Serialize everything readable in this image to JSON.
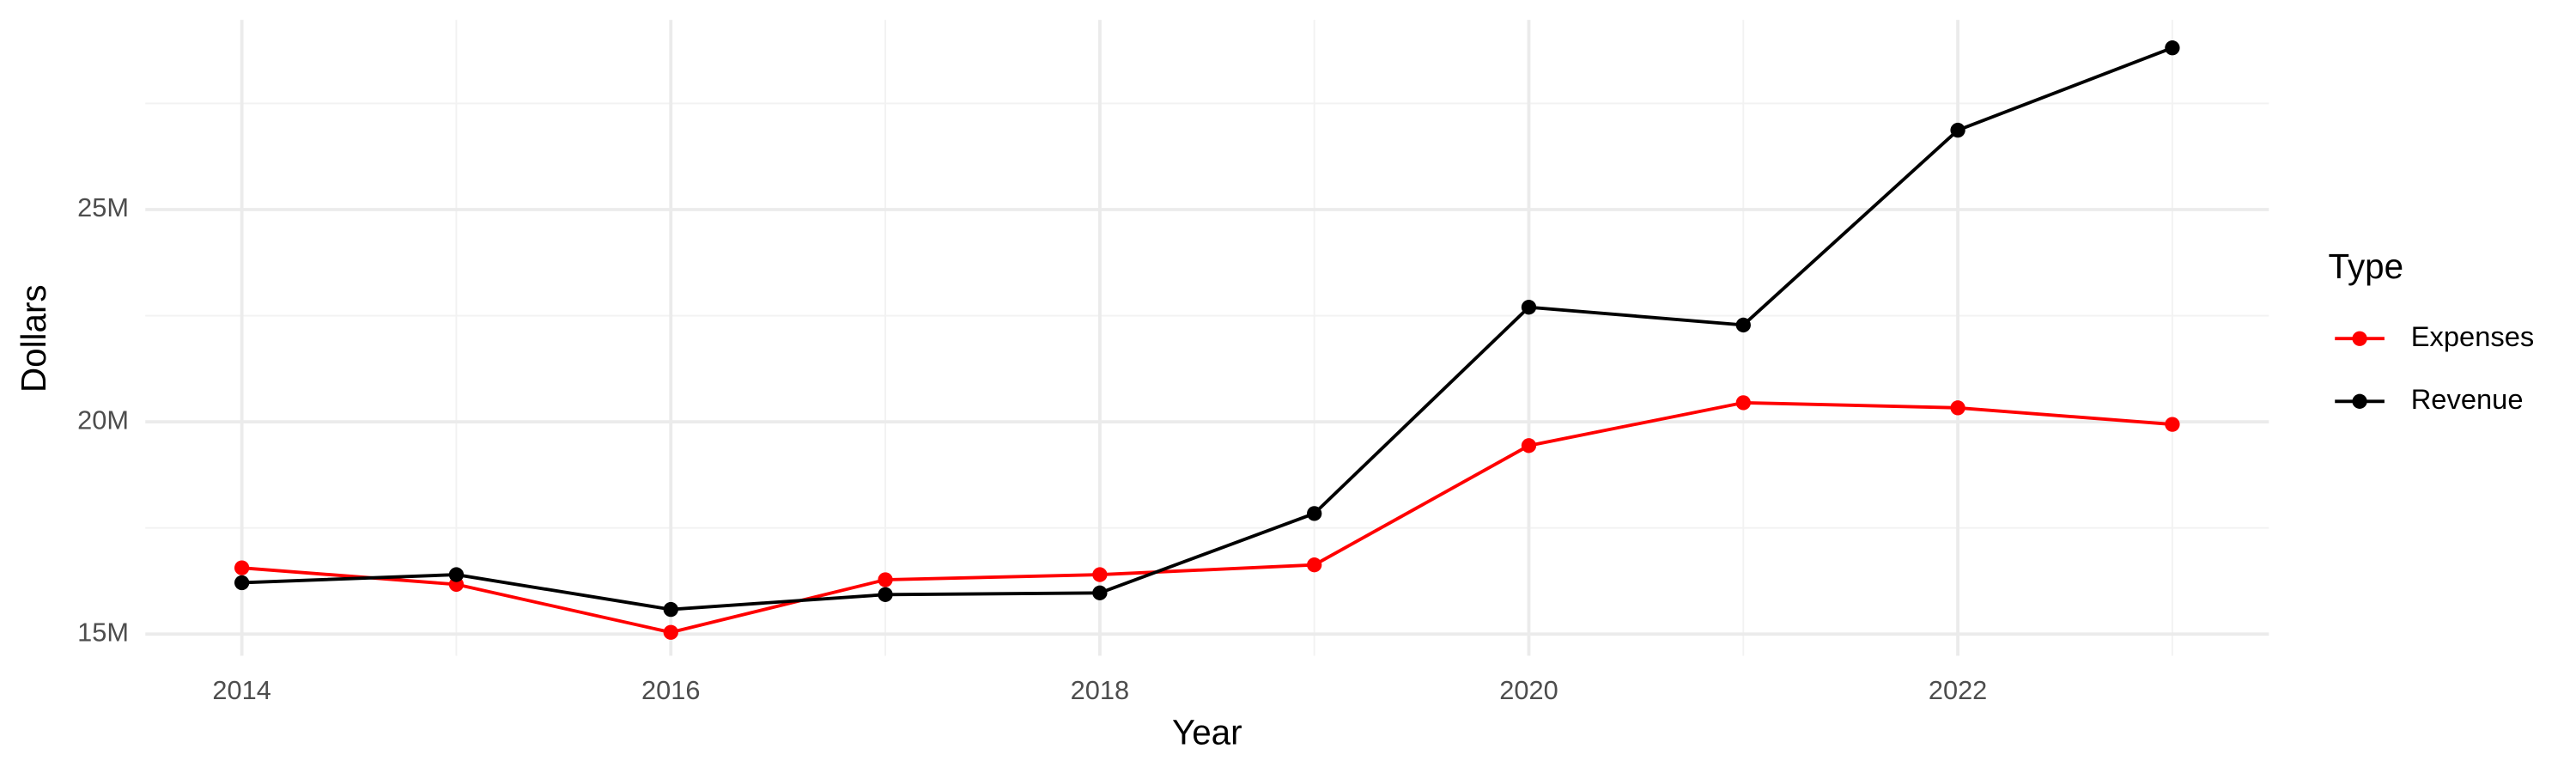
{
  "chart_data": {
    "type": "line",
    "x_label": "Year",
    "y_label": "Dollars",
    "x": [
      2014,
      2015,
      2016,
      2017,
      2018,
      2019,
      2020,
      2021,
      2022,
      2023
    ],
    "series": [
      {
        "name": "Expenses",
        "color": "#ff0000",
        "values": [
          16560000,
          16170000,
          15040000,
          16280000,
          16400000,
          16630000,
          19440000,
          20450000,
          20330000,
          19940000
        ]
      },
      {
        "name": "Revenue",
        "color": "#000000",
        "values": [
          16210000,
          16400000,
          15580000,
          15930000,
          15970000,
          17840000,
          22700000,
          22280000,
          26870000,
          28810000
        ]
      }
    ],
    "xlim": [
      2013.55,
      2023.45
    ],
    "xticks": [
      2014,
      2016,
      2018,
      2020,
      2022
    ],
    "ylim": [
      14490000,
      29470000
    ],
    "yticks": [
      {
        "value": 15000000,
        "label": "15M"
      },
      {
        "value": 20000000,
        "label": "20M"
      },
      {
        "value": 25000000,
        "label": "25M"
      }
    ],
    "grid": true,
    "legend_title": "Type",
    "legend_position": "right"
  }
}
